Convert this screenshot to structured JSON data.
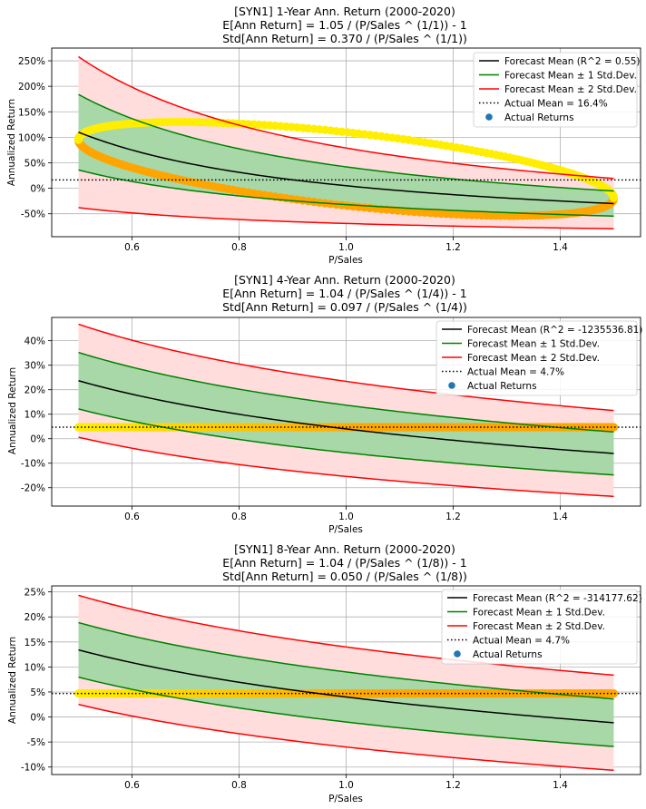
{
  "chart_data": [
    {
      "type": "line",
      "title": [
        "[SYN1] 1-Year Ann. Return (2000-2020)",
        "E[Ann Return] = 1.05 / (P/Sales ^ (1/1)) - 1",
        "Std[Ann Return] = 0.370 / (P/Sales ^ (1/1))"
      ],
      "xlabel": "P/Sales",
      "ylabel": "Annualized Return",
      "xlim": [
        0.45,
        1.55
      ],
      "ylim": [
        -0.95,
        2.75
      ],
      "xticks": [
        0.6,
        0.8,
        1.0,
        1.2,
        1.4
      ],
      "xtick_labels": [
        "0.6",
        "0.8",
        "1.0",
        "1.2",
        "1.4"
      ],
      "yticks": [
        -0.5,
        0.0,
        0.5,
        1.0,
        1.5,
        2.0,
        2.5
      ],
      "ytick_labels": [
        "-50%",
        "0%",
        "50%",
        "100%",
        "150%",
        "200%",
        "250%"
      ],
      "grid": true,
      "legend_position": "top-right",
      "model": {
        "x_min": 0.5,
        "x_max": 1.5,
        "a": 1.05,
        "b": 0.37,
        "n": 1
      },
      "actual_mean": 0.164,
      "scatter": {
        "kind": "loop",
        "center_x": 1.0,
        "center_y": 0.38,
        "amp_x": 0.5,
        "amp_y": 0.92,
        "phase": 0.9
      },
      "legend": [
        "Forecast Mean (R^2 = 0.55)",
        "Forecast Mean ± 1 Std.Dev.",
        "Forecast Mean ± 2 Std.Dev.",
        "Actual Mean = 16.4%",
        "Actual Returns"
      ]
    },
    {
      "type": "line",
      "title": [
        "[SYN1] 4-Year Ann. Return (2000-2020)",
        "E[Ann Return] = 1.04 / (P/Sales ^ (1/4)) - 1",
        "Std[Ann Return] = 0.097 / (P/Sales ^ (1/4))"
      ],
      "xlabel": "P/Sales",
      "ylabel": "Annualized Return",
      "xlim": [
        0.45,
        1.55
      ],
      "ylim": [
        -0.275,
        0.495
      ],
      "xticks": [
        0.6,
        0.8,
        1.0,
        1.2,
        1.4
      ],
      "xtick_labels": [
        "0.6",
        "0.8",
        "1.0",
        "1.2",
        "1.4"
      ],
      "yticks": [
        -0.2,
        -0.1,
        0.0,
        0.1,
        0.2,
        0.3,
        0.4
      ],
      "ytick_labels": [
        "-20%",
        "-10%",
        "0%",
        "10%",
        "20%",
        "30%",
        "40%"
      ],
      "grid": true,
      "legend_position": "top-right",
      "model": {
        "x_min": 0.5,
        "x_max": 1.5,
        "a": 1.04,
        "b": 0.097,
        "n": 4
      },
      "actual_mean": 0.047,
      "scatter": {
        "kind": "flat",
        "y": 0.047
      },
      "legend": [
        "Forecast Mean (R^2 = -1235536.81)",
        "Forecast Mean ± 1 Std.Dev.",
        "Forecast Mean ± 2 Std.Dev.",
        "Actual Mean = 4.7%",
        "Actual Returns"
      ]
    },
    {
      "type": "line",
      "title": [
        "[SYN1] 8-Year Ann. Return (2000-2020)",
        "E[Ann Return] = 1.04 / (P/Sales ^ (1/8)) - 1",
        "Std[Ann Return] = 0.050 / (P/Sales ^ (1/8))"
      ],
      "xlabel": "P/Sales",
      "ylabel": "Annualized Return",
      "xlim": [
        0.45,
        1.55
      ],
      "ylim": [
        -0.115,
        0.262
      ],
      "xticks": [
        0.6,
        0.8,
        1.0,
        1.2,
        1.4
      ],
      "xtick_labels": [
        "0.6",
        "0.8",
        "1.0",
        "1.2",
        "1.4"
      ],
      "yticks": [
        -0.1,
        -0.05,
        0.0,
        0.05,
        0.1,
        0.15,
        0.2,
        0.25
      ],
      "ytick_labels": [
        "-10%",
        "-5%",
        "0%",
        "5%",
        "10%",
        "15%",
        "20%",
        "25%"
      ],
      "grid": true,
      "legend_position": "top-right",
      "model": {
        "x_min": 0.5,
        "x_max": 1.5,
        "a": 1.04,
        "b": 0.05,
        "n": 8
      },
      "actual_mean": 0.047,
      "scatter": {
        "kind": "flat",
        "y": 0.047
      },
      "legend": [
        "Forecast Mean (R^2 = -314177.62)",
        "Forecast Mean ± 1 Std.Dev.",
        "Forecast Mean ± 2 Std.Dev.",
        "Actual Mean = 4.7%",
        "Actual Returns"
      ]
    }
  ],
  "colors": {
    "mean": "#000000",
    "std1": "#008000",
    "std2": "#ff0000",
    "band1": "#a8d8a8",
    "band2": "#ffdddd",
    "actual_mean": "#000000",
    "scatter_early": "#ffa500",
    "scatter_late": "#ffee00",
    "legend_marker": "#1f77b4",
    "grid": "#b0b0b0"
  }
}
